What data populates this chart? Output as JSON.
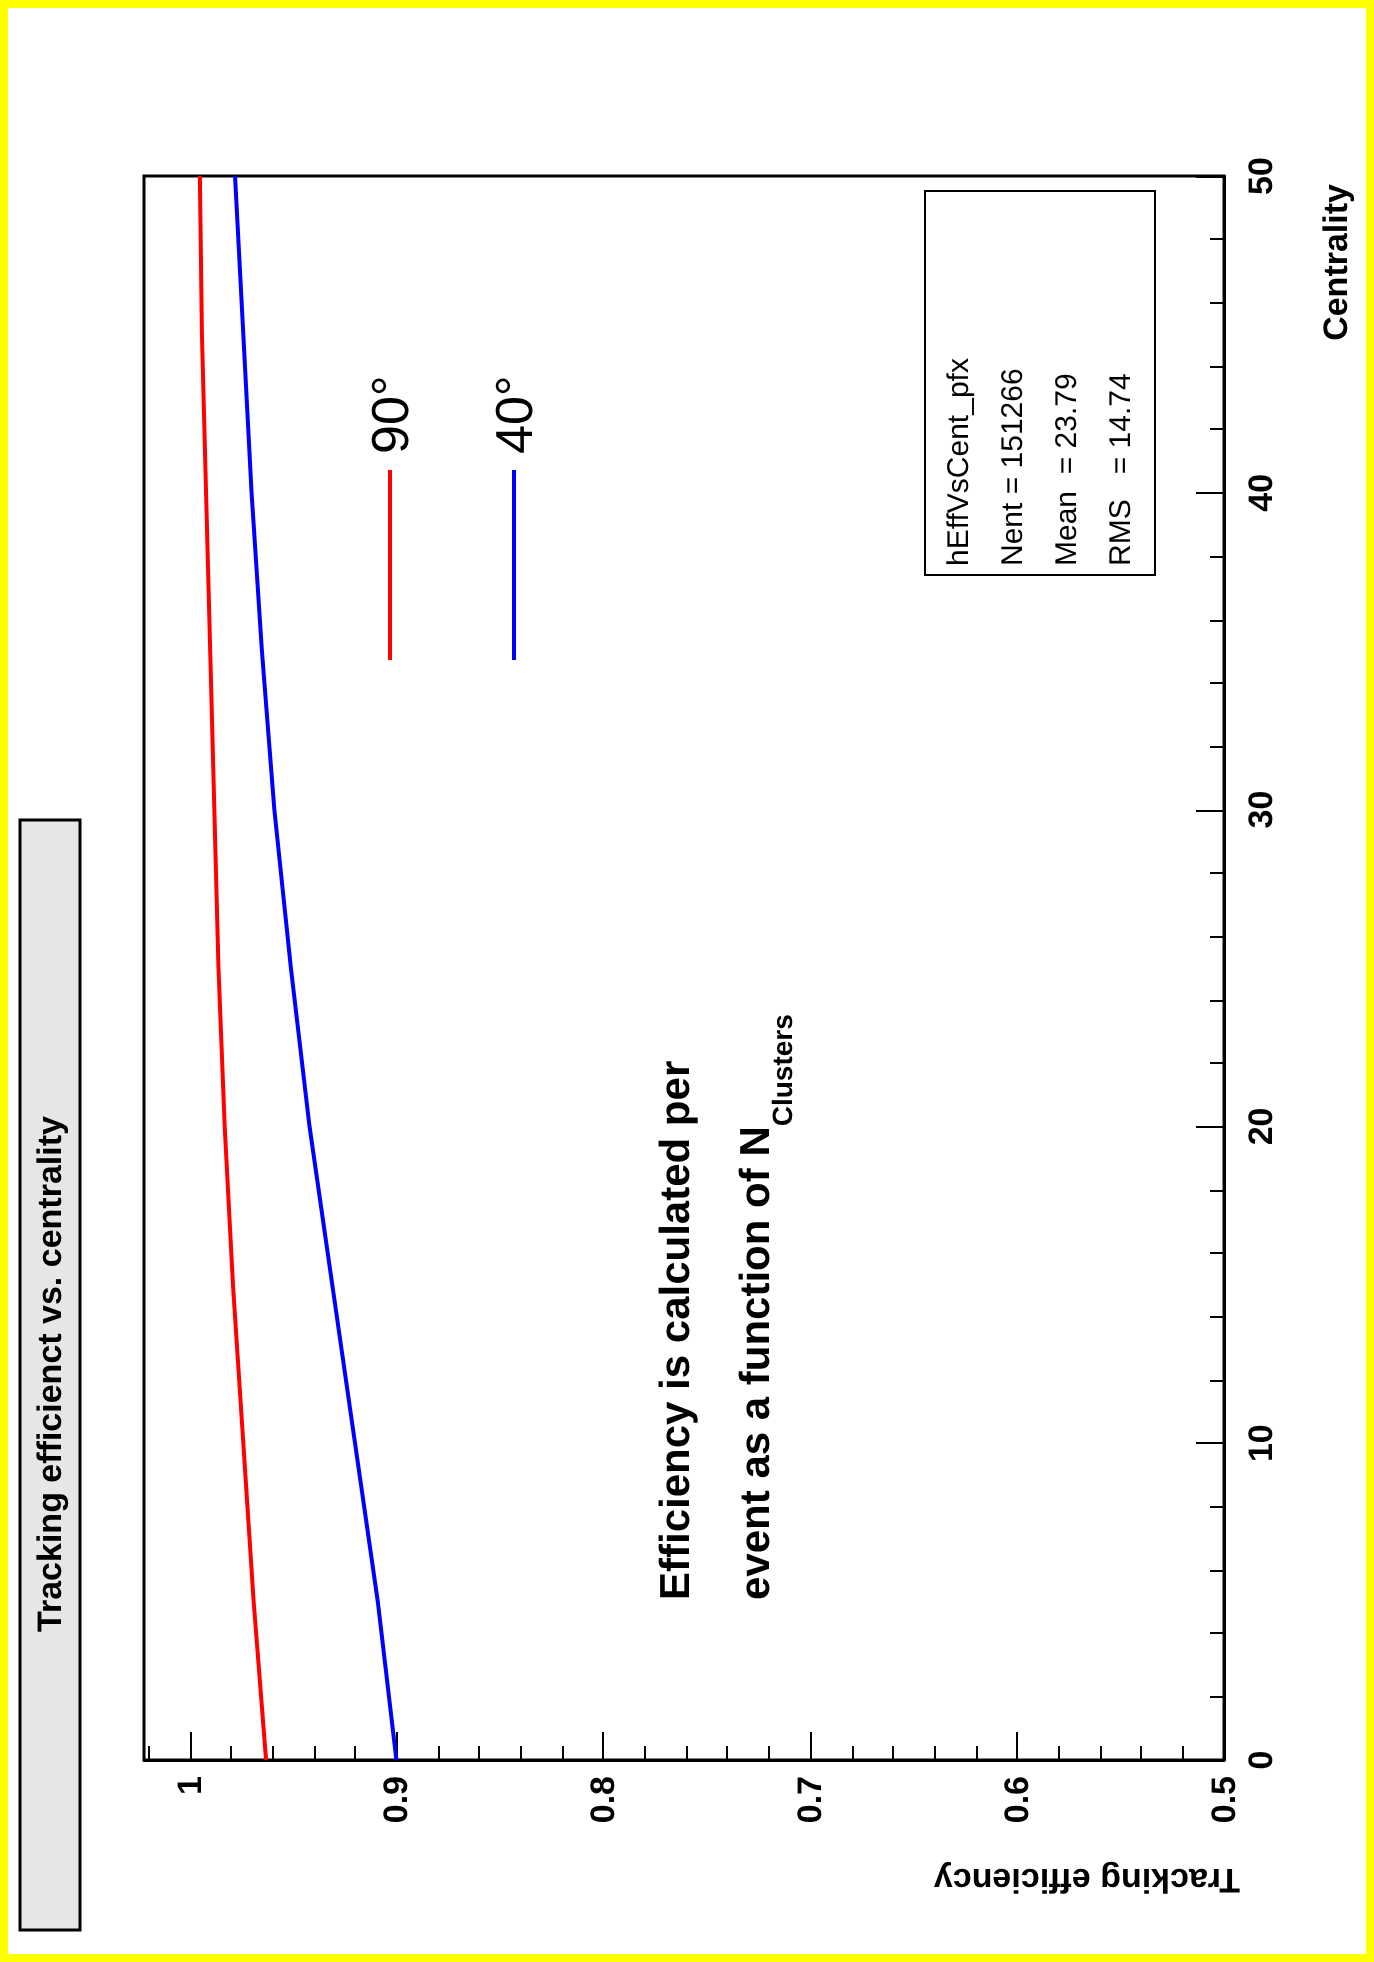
{
  "chart_data": {
    "type": "line",
    "title": "Tracking efficienct vs. centrality",
    "xlabel": "Tracking efficiency",
    "ylabel": "Centrality",
    "series": [
      {
        "name": "90°",
        "color": "#ff0000",
        "x": [
          0.963,
          0.969,
          0.974,
          0.979,
          0.983,
          0.986,
          0.988,
          0.99,
          0.992,
          0.994,
          0.995
        ],
        "values": [
          0,
          5,
          10,
          15,
          20,
          25,
          30,
          35,
          40,
          45,
          50
        ]
      },
      {
        "name": "40°",
        "color": "#0000ff",
        "x": [
          0.9,
          0.909,
          0.92,
          0.931,
          0.942,
          0.951,
          0.959,
          0.965,
          0.97,
          0.974,
          0.978
        ],
        "values": [
          0,
          5,
          10,
          15,
          20,
          25,
          30,
          35,
          40,
          45,
          50
        ]
      }
    ],
    "xlim": [
      1.022,
      0.5
    ],
    "xticks": [
      1,
      0.9,
      0.8,
      0.7,
      0.6,
      0.5
    ],
    "ylim": [
      0,
      50
    ],
    "yticks": [
      0,
      10,
      20,
      30,
      40,
      50
    ],
    "grid": false,
    "legend": "top left",
    "marker": "none",
    "line_style": "solid",
    "annotations": [
      "hEffVsCent_pfx\nNent = 151266\nMean  = 23.79\nRMS   = 14.74",
      "Efficiency is calculated per event as a function of N$_{Clusters}$"
    ]
  }
}
